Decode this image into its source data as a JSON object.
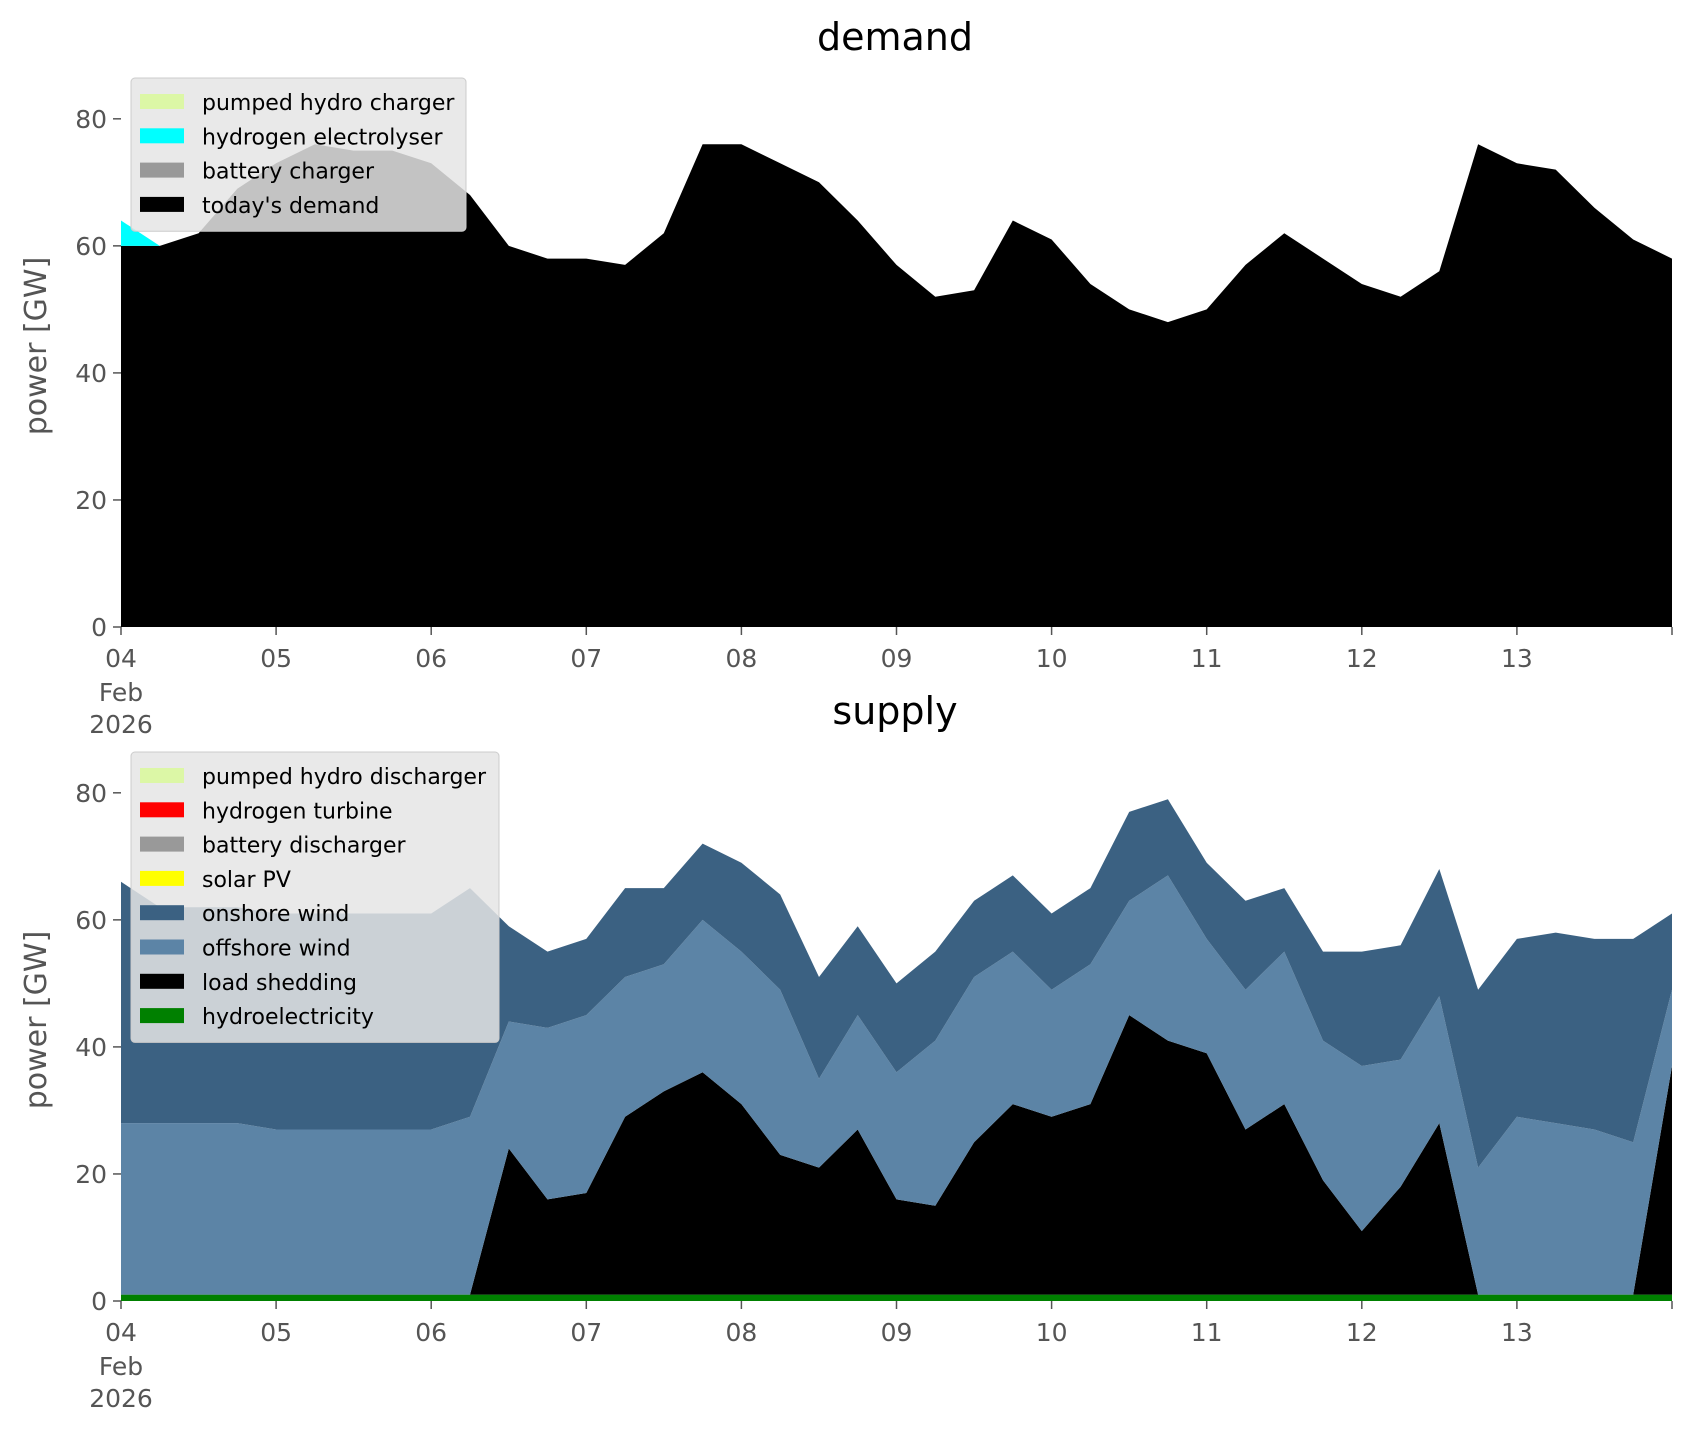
{
  "colors": {
    "pumped_hydro": "#dcf7a6",
    "hydrogen_electrolyser": "#00ffff",
    "battery": "#999999",
    "demand": "#000000",
    "hydrogen_turbine": "#ff0000",
    "solar": "#ffff00",
    "onshore_wind": "#3b6182",
    "offshore_wind": "#5c84a6",
    "load_shedding": "#000000",
    "hydro": "#008000"
  },
  "chart_data": [
    {
      "type": "area",
      "title": "demand",
      "ylabel": "power [GW]",
      "xlabel": "",
      "ylim": [
        0,
        88
      ],
      "xlim": [
        0,
        240
      ],
      "y_ticks": [
        "0",
        "20",
        "40",
        "60",
        "80"
      ],
      "x_ticks": [
        "04",
        "05",
        "06",
        "07",
        "08",
        "09",
        "10",
        "11",
        "12",
        "13"
      ],
      "x_tick_sub": [
        "Feb",
        "2026"
      ],
      "stacked": true,
      "grid": false,
      "legend_position": "upper left",
      "x_unit": "hours since 04 Feb 2026 00:00",
      "x": [
        0,
        6,
        12,
        18,
        24,
        30,
        36,
        42,
        48,
        54,
        60,
        66,
        72,
        78,
        84,
        90,
        96,
        102,
        108,
        114,
        120,
        126,
        132,
        138,
        144,
        150,
        156,
        162,
        168,
        174,
        180,
        186,
        192,
        198,
        204,
        210,
        216,
        222,
        228,
        234,
        240
      ],
      "series": [
        {
          "name": "today's demand",
          "values": [
            60,
            60,
            62,
            69,
            73,
            76,
            75,
            75,
            73,
            68,
            60,
            58,
            58,
            57,
            62,
            76,
            76,
            73,
            70,
            64,
            57,
            52,
            53,
            64,
            61,
            54,
            50,
            48,
            50,
            57,
            62,
            58,
            54,
            52,
            56,
            76,
            73,
            72,
            66,
            61,
            58
          ]
        },
        {
          "name": "battery charger",
          "values": [
            0,
            0,
            0,
            0,
            0,
            0,
            0,
            0,
            0,
            0,
            0,
            0,
            0,
            0,
            0,
            0,
            0,
            0,
            0,
            0,
            0,
            0,
            0,
            0,
            0,
            0,
            0,
            0,
            0,
            0,
            0,
            0,
            0,
            0,
            0,
            0,
            0,
            0,
            0,
            0,
            0
          ]
        },
        {
          "name": "hydrogen electrolyser",
          "values": [
            4,
            0,
            0,
            0,
            0,
            0,
            0,
            0,
            0,
            0,
            0,
            0,
            0,
            0,
            0,
            0,
            0,
            0,
            0,
            0,
            0,
            0,
            0,
            0,
            0,
            0,
            0,
            0,
            0,
            0,
            0,
            0,
            0,
            0,
            0,
            0,
            0,
            0,
            0,
            0,
            0
          ]
        },
        {
          "name": "pumped hydro charger",
          "values": [
            0,
            0,
            0,
            0,
            0,
            0,
            0,
            0,
            0,
            0,
            0,
            0,
            0,
            0,
            0,
            0,
            0,
            0,
            0,
            0,
            0,
            0,
            0,
            0,
            0,
            0,
            0,
            0,
            0,
            0,
            0,
            0,
            0,
            0,
            0,
            0,
            0,
            0,
            0,
            0,
            0
          ]
        }
      ]
    },
    {
      "type": "area",
      "title": "supply",
      "ylabel": "power [GW]",
      "xlabel": "",
      "ylim": [
        0,
        88
      ],
      "xlim": [
        0,
        240
      ],
      "y_ticks": [
        "0",
        "20",
        "40",
        "60",
        "80"
      ],
      "x_ticks": [
        "04",
        "05",
        "06",
        "07",
        "08",
        "09",
        "10",
        "11",
        "12",
        "13"
      ],
      "x_tick_sub": [
        "Feb",
        "2026"
      ],
      "stacked": true,
      "grid": false,
      "legend_position": "upper left",
      "x_unit": "hours since 04 Feb 2026 00:00",
      "x": [
        0,
        6,
        12,
        18,
        24,
        30,
        36,
        42,
        48,
        54,
        60,
        66,
        72,
        78,
        84,
        90,
        96,
        102,
        108,
        114,
        120,
        126,
        132,
        138,
        144,
        150,
        156,
        162,
        168,
        174,
        180,
        186,
        192,
        198,
        204,
        210,
        216,
        222,
        228,
        234,
        240
      ],
      "series": [
        {
          "name": "hydroelectricity",
          "values": [
            1,
            1,
            1,
            1,
            1,
            1,
            1,
            1,
            1,
            1,
            1,
            1,
            1,
            1,
            1,
            1,
            1,
            1,
            1,
            1,
            1,
            1,
            1,
            1,
            1,
            1,
            1,
            1,
            1,
            1,
            1,
            1,
            1,
            1,
            1,
            1,
            1,
            1,
            1,
            1,
            1
          ]
        },
        {
          "name": "load shedding",
          "values": [
            0,
            0,
            0,
            0,
            0,
            0,
            0,
            0,
            0,
            0,
            23,
            15,
            16,
            28,
            32,
            35,
            30,
            22,
            20,
            26,
            15,
            14,
            24,
            30,
            28,
            30,
            44,
            40,
            38,
            26,
            30,
            18,
            10,
            17,
            27,
            0,
            0,
            0,
            0,
            0,
            36
          ]
        },
        {
          "name": "offshore wind",
          "values": [
            27,
            27,
            27,
            27,
            26,
            26,
            26,
            26,
            26,
            28,
            20,
            27,
            28,
            22,
            20,
            24,
            24,
            26,
            14,
            18,
            20,
            26,
            26,
            24,
            20,
            22,
            18,
            26,
            18,
            22,
            24,
            22,
            26,
            20,
            20,
            20,
            28,
            27,
            26,
            24,
            12
          ]
        },
        {
          "name": "onshore wind",
          "values": [
            38,
            34,
            34,
            34,
            34,
            34,
            34,
            34,
            34,
            36,
            15,
            12,
            12,
            14,
            12,
            12,
            14,
            15,
            16,
            14,
            14,
            14,
            12,
            12,
            12,
            12,
            14,
            12,
            12,
            14,
            10,
            14,
            18,
            18,
            20,
            28,
            28,
            30,
            30,
            32,
            12
          ]
        },
        {
          "name": "solar PV",
          "values": [
            0,
            0,
            0,
            0,
            0,
            0,
            0,
            0,
            0,
            0,
            0,
            0,
            0,
            0,
            0,
            0,
            0,
            0,
            0,
            0,
            0,
            0,
            0,
            0,
            0,
            0,
            0,
            0,
            0,
            0,
            0,
            0,
            0,
            0,
            0,
            0,
            0,
            0,
            0,
            0,
            0
          ]
        },
        {
          "name": "battery discharger",
          "values": [
            0,
            0,
            0,
            0,
            0,
            0,
            0,
            0,
            0,
            0,
            0,
            0,
            0,
            0,
            0,
            0,
            0,
            0,
            0,
            0,
            0,
            0,
            0,
            0,
            0,
            0,
            0,
            0,
            0,
            0,
            0,
            0,
            0,
            0,
            0,
            0,
            0,
            0,
            0,
            0,
            0
          ]
        },
        {
          "name": "hydrogen turbine",
          "values": [
            0,
            0,
            0,
            0,
            0,
            0,
            0,
            0,
            0,
            0,
            0,
            0,
            0,
            0,
            0,
            0,
            0,
            0,
            0,
            0,
            0,
            0,
            0,
            0,
            0,
            0,
            0,
            0,
            0,
            0,
            0,
            0,
            0,
            0,
            0,
            0,
            0,
            0,
            0,
            0,
            0
          ]
        },
        {
          "name": "pumped hydro discharger",
          "values": [
            0,
            0,
            0,
            0,
            0,
            0,
            0,
            0,
            0,
            0,
            0,
            0,
            0,
            0,
            0,
            0,
            0,
            0,
            0,
            0,
            0,
            0,
            0,
            0,
            0,
            0,
            0,
            0,
            0,
            0,
            0,
            0,
            0,
            0,
            0,
            0,
            0,
            0,
            0,
            0,
            0
          ]
        }
      ]
    }
  ],
  "legends": [
    {
      "items": [
        {
          "label": "pumped hydro charger",
          "color": "#dcf7a6"
        },
        {
          "label": "hydrogen electrolyser",
          "color": "#00ffff"
        },
        {
          "label": "battery charger",
          "color": "#999999"
        },
        {
          "label": "today's demand",
          "color": "#000000"
        }
      ]
    },
    {
      "items": [
        {
          "label": "pumped hydro discharger",
          "color": "#dcf7a6"
        },
        {
          "label": "hydrogen turbine",
          "color": "#ff0000"
        },
        {
          "label": "battery discharger",
          "color": "#999999"
        },
        {
          "label": "solar PV",
          "color": "#ffff00"
        },
        {
          "label": "onshore wind",
          "color": "#3b6182"
        },
        {
          "label": "offshore wind",
          "color": "#5c84a6"
        },
        {
          "label": "load shedding",
          "color": "#000000"
        },
        {
          "label": "hydroelectricity",
          "color": "#008000"
        }
      ]
    }
  ]
}
